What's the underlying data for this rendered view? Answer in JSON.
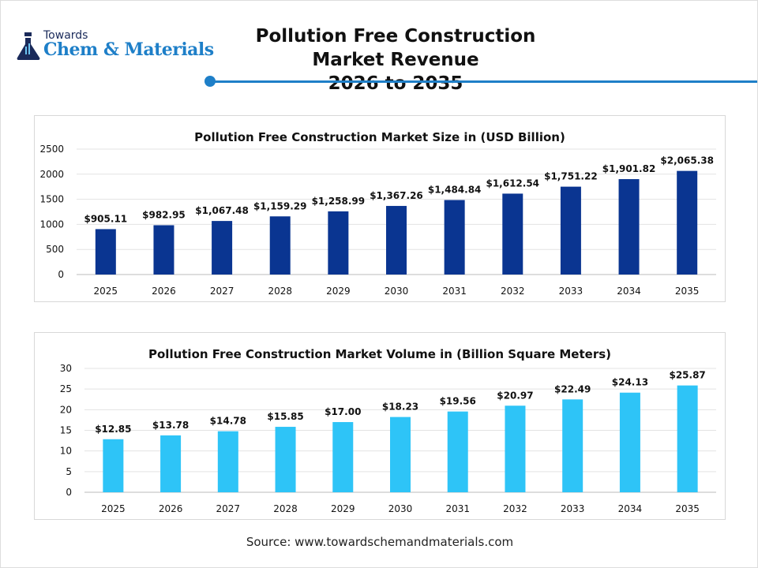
{
  "logo": {
    "line1": "Towards",
    "line2": "Chem & Materials"
  },
  "header": {
    "title_line1": "Pollution Free Construction Market Revenue",
    "title_line2": "2026 to 2035"
  },
  "colors": {
    "accent": "#1e7fc8",
    "bar1": "#0a3591",
    "bar2": "#2ec4f7"
  },
  "chart_data": [
    {
      "type": "bar",
      "title": "Pollution Free Construction Market Size in (USD Billion)",
      "categories": [
        "2025",
        "2026",
        "2027",
        "2028",
        "2029",
        "2030",
        "2031",
        "2032",
        "2033",
        "2034",
        "2035"
      ],
      "values": [
        905.11,
        982.95,
        1067.48,
        1159.29,
        1258.99,
        1367.26,
        1484.84,
        1612.54,
        1751.22,
        1901.82,
        2065.38
      ],
      "labels": [
        "$905.11",
        "$982.95",
        "$1,067.48",
        "$1,159.29",
        "$1,258.99",
        "$1,367.26",
        "$1,484.84",
        "$1,612.54",
        "$1,751.22",
        "$1,901.82",
        "$2,065.38"
      ],
      "yticks": [
        "0",
        "500",
        "1000",
        "1500",
        "2000",
        "2500"
      ],
      "ylim": [
        0,
        2500
      ],
      "grid": true,
      "color": "#0a3591"
    },
    {
      "type": "bar",
      "title": "Pollution Free Construction Market Volume in (Billion Square Meters)",
      "categories": [
        "2025",
        "2026",
        "2027",
        "2028",
        "2029",
        "2030",
        "2031",
        "2032",
        "2033",
        "2034",
        "2035"
      ],
      "values": [
        12.85,
        13.78,
        14.78,
        15.85,
        17.0,
        18.23,
        19.56,
        20.97,
        22.49,
        24.13,
        25.87
      ],
      "labels": [
        "$12.85",
        "$13.78",
        "$14.78",
        "$15.85",
        "$17.00",
        "$18.23",
        "$19.56",
        "$20.97",
        "$22.49",
        "$24.13",
        "$25.87"
      ],
      "yticks": [
        "0",
        "5",
        "10",
        "15",
        "20",
        "25",
        "30"
      ],
      "ylim": [
        0,
        30
      ],
      "grid": true,
      "color": "#2ec4f7"
    }
  ],
  "source": "Source: www.towardschemandmaterials.com"
}
